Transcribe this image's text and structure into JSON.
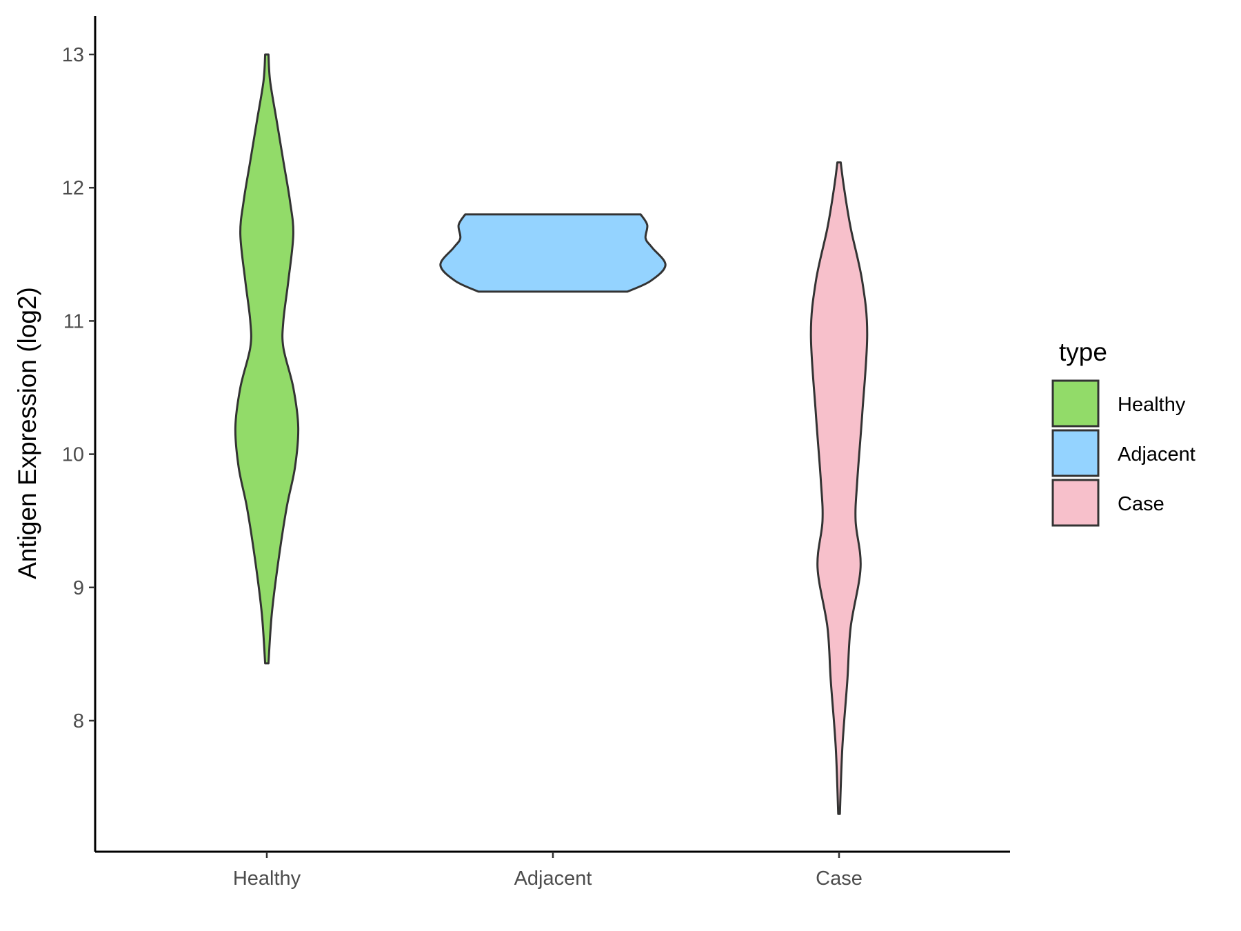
{
  "chart_data": {
    "type": "violin",
    "ylabel": "Antigen Expression (log2)",
    "xlabel": "",
    "ylim": [
      7.0,
      13.3
    ],
    "yticks": [
      8,
      9,
      10,
      11,
      12,
      13
    ],
    "categories": [
      "Healthy",
      "Adjacent",
      "Case"
    ],
    "legend": {
      "title": "type",
      "position": "right",
      "entries": [
        "Healthy",
        "Adjacent",
        "Case"
      ]
    },
    "grid": false,
    "series": [
      {
        "name": "Healthy",
        "color": "#92DB69",
        "min": 8.43,
        "max": 13.0,
        "profile": [
          [
            8.43,
            0.01
          ],
          [
            8.8,
            0.03
          ],
          [
            9.2,
            0.07
          ],
          [
            9.6,
            0.12
          ],
          [
            9.9,
            0.17
          ],
          [
            10.2,
            0.19
          ],
          [
            10.5,
            0.16
          ],
          [
            10.8,
            0.1
          ],
          [
            11.0,
            0.1
          ],
          [
            11.3,
            0.13
          ],
          [
            11.65,
            0.16
          ],
          [
            11.9,
            0.14
          ],
          [
            12.2,
            0.1
          ],
          [
            12.5,
            0.06
          ],
          [
            12.8,
            0.02
          ],
          [
            13.0,
            0.01
          ]
        ]
      },
      {
        "name": "Adjacent",
        "color": "#94D3FF",
        "min": 11.22,
        "max": 11.8,
        "profile": [
          [
            11.22,
            0.45
          ],
          [
            11.3,
            0.59
          ],
          [
            11.42,
            0.68
          ],
          [
            11.55,
            0.6
          ],
          [
            11.62,
            0.56
          ],
          [
            11.72,
            0.57
          ],
          [
            11.8,
            0.53
          ]
        ]
      },
      {
        "name": "Case",
        "color": "#F7C0CB",
        "min": 7.3,
        "max": 12.19,
        "profile": [
          [
            7.3,
            0.005
          ],
          [
            7.8,
            0.02
          ],
          [
            8.3,
            0.05
          ],
          [
            8.7,
            0.07
          ],
          [
            9.15,
            0.13
          ],
          [
            9.5,
            0.1
          ],
          [
            9.8,
            0.11
          ],
          [
            10.3,
            0.14
          ],
          [
            10.9,
            0.17
          ],
          [
            11.3,
            0.14
          ],
          [
            11.7,
            0.07
          ],
          [
            12.0,
            0.03
          ],
          [
            12.19,
            0.01
          ]
        ]
      }
    ]
  }
}
